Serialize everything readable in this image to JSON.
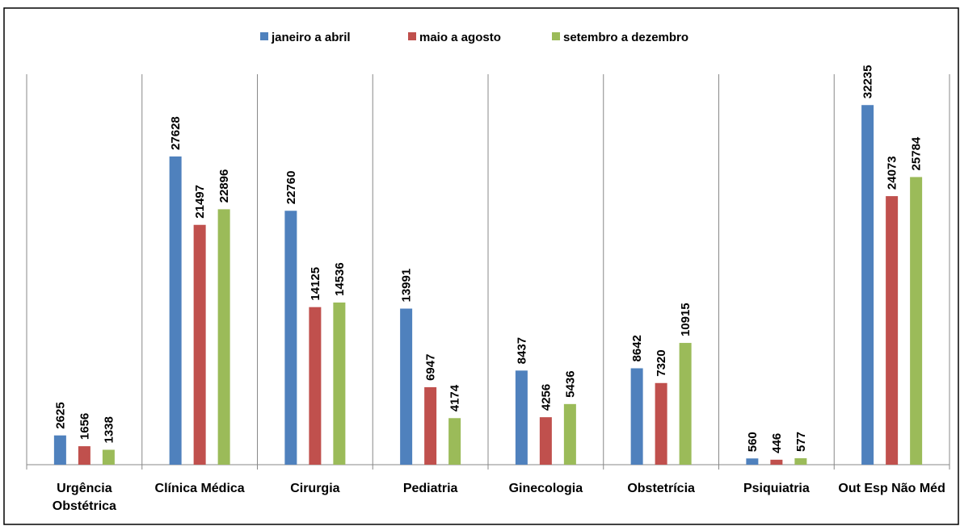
{
  "chart_data": {
    "type": "bar",
    "categories": [
      "Urgência Obstétrica",
      "Clínica Médica",
      "Cirurgia",
      "Pediatria",
      "Ginecologia",
      "Obstetrícia",
      "Psiquiatria",
      "Out Esp Não Méd"
    ],
    "series": [
      {
        "name": "janeiro a abril",
        "color": "#4f81bd",
        "values": [
          2625,
          27628,
          22760,
          13991,
          8437,
          8642,
          560,
          32235
        ]
      },
      {
        "name": "maio a agosto",
        "color": "#c0504d",
        "values": [
          1656,
          21497,
          14125,
          6947,
          4256,
          7320,
          446,
          24073
        ]
      },
      {
        "name": "setembro a dezembro",
        "color": "#9bbb59",
        "values": [
          1338,
          22896,
          14536,
          4174,
          5436,
          10915,
          577,
          25784
        ]
      }
    ],
    "ylim": [
      0,
      35000
    ],
    "legend": "top"
  }
}
